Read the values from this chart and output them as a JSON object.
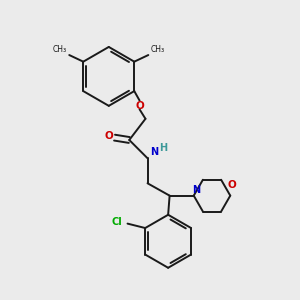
{
  "bg_color": "#ebebeb",
  "bond_color": "#1a1a1a",
  "oxygen_color": "#cc0000",
  "nitrogen_color": "#0000cc",
  "nitrogen_h_color": "#3d9999",
  "chlorine_color": "#00aa00",
  "line_width": 1.4,
  "figsize": [
    3.0,
    3.0
  ],
  "dpi": 100,
  "xlim": [
    0,
    10
  ],
  "ylim": [
    0,
    10
  ]
}
